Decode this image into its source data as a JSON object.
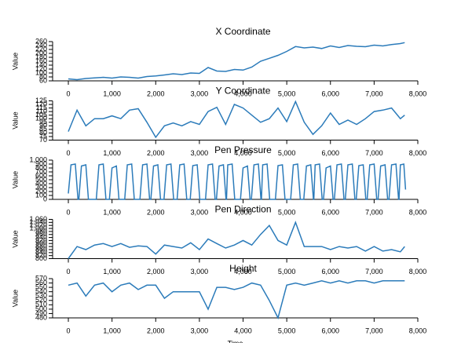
{
  "chart_data": [
    {
      "type": "line",
      "title": "X Coordinate",
      "ylabel": "Value",
      "color": "#2b7bba",
      "x": [
        0,
        200,
        400,
        600,
        800,
        1000,
        1200,
        1400,
        1600,
        1800,
        2000,
        2200,
        2400,
        2600,
        2800,
        3000,
        3200,
        3400,
        3600,
        3800,
        4000,
        4200,
        4400,
        4600,
        4800,
        5000,
        5200,
        5400,
        5600,
        5800,
        6000,
        6200,
        6400,
        6600,
        6800,
        7000,
        7200,
        7400,
        7600,
        7700
      ],
      "values": [
        70,
        66,
        72,
        75,
        78,
        74,
        80,
        78,
        74,
        82,
        85,
        90,
        96,
        92,
        100,
        98,
        128,
        110,
        108,
        118,
        115,
        130,
        160,
        175,
        190,
        210,
        235,
        228,
        232,
        225,
        238,
        230,
        240,
        236,
        234,
        242,
        238,
        245,
        250,
        255
      ],
      "xlim": [
        -360,
        8000
      ],
      "xticks": [
        0,
        {
          "value": 1000,
          "label": "1,000"
        },
        {
          "value": 2000,
          "label": "2,000"
        },
        {
          "value": 3000,
          "label": "3,000"
        },
        {
          "value": 4000,
          "label": "4,000"
        },
        {
          "value": 5000,
          "label": "5,000"
        },
        {
          "value": 6000,
          "label": "6,000"
        },
        {
          "value": 7000,
          "label": "7,000"
        },
        {
          "value": 8000,
          "label": "8,000"
        }
      ],
      "ylim": [
        60,
        260
      ],
      "yticks": [
        60,
        80,
        100,
        120,
        140,
        160,
        180,
        200,
        220,
        240,
        260
      ]
    },
    {
      "type": "line",
      "title": "Y Coordinate",
      "ylabel": "Value",
      "color": "#2b7bba",
      "x": [
        0,
        200,
        400,
        600,
        800,
        1000,
        1200,
        1400,
        1600,
        1800,
        2000,
        2200,
        2400,
        2600,
        2800,
        3000,
        3200,
        3400,
        3600,
        3800,
        4000,
        4200,
        4400,
        4600,
        4800,
        5000,
        5200,
        5400,
        5600,
        5800,
        6000,
        6200,
        6400,
        6600,
        6800,
        7000,
        7200,
        7400,
        7600,
        7700
      ],
      "values": [
        82,
        112,
        90,
        100,
        100,
        104,
        100,
        112,
        114,
        95,
        74,
        90,
        94,
        90,
        96,
        92,
        110,
        116,
        92,
        120,
        115,
        105,
        95,
        100,
        115,
        96,
        124,
        95,
        78,
        90,
        108,
        92,
        98,
        92,
        100,
        110,
        112,
        115,
        100,
        105
      ],
      "xlim": [
        -360,
        8000
      ],
      "xticks": [
        0,
        {
          "value": 1000,
          "label": "1,000"
        },
        {
          "value": 2000,
          "label": "2,000"
        },
        {
          "value": 3000,
          "label": "3,000"
        },
        {
          "value": 4000,
          "label": "4,000"
        },
        {
          "value": 5000,
          "label": "5,000"
        },
        {
          "value": 6000,
          "label": "6,000"
        },
        {
          "value": 7000,
          "label": "7,000"
        },
        {
          "value": 8000,
          "label": "8,000"
        }
      ],
      "ylim": [
        70,
        125
      ],
      "yticks": [
        70,
        75,
        80,
        85,
        90,
        95,
        100,
        105,
        110,
        115,
        120,
        125
      ]
    },
    {
      "type": "line",
      "title": "Pen Pressure",
      "ylabel": "Value",
      "color": "#2b7bba",
      "x": [
        0,
        60,
        160,
        220,
        240,
        300,
        400,
        460,
        640,
        700,
        800,
        860,
        940,
        1000,
        1100,
        1160,
        1290,
        1350,
        1450,
        1510,
        1640,
        1700,
        1800,
        1860,
        1890,
        1950,
        2050,
        2110,
        2190,
        2250,
        2350,
        2410,
        2490,
        2550,
        2650,
        2710,
        2790,
        2850,
        2950,
        3010,
        3140,
        3200,
        3300,
        3360,
        3390,
        3450,
        3550,
        3610,
        3620,
        3650,
        3750,
        3810,
        3940,
        4000,
        4100,
        4160,
        4190,
        4250,
        4350,
        4410,
        4420,
        4450,
        4550,
        4610,
        4740,
        4800,
        4900,
        4960,
        5090,
        5150,
        5250,
        5310,
        5390,
        5450,
        5550,
        5610,
        5620,
        5650,
        5750,
        5810,
        5840,
        5900,
        6000,
        6060,
        6090,
        6150,
        6250,
        6310,
        6340,
        6400,
        6500,
        6560,
        6590,
        6650,
        6750,
        6810,
        6840,
        6900,
        7000,
        7060,
        7090,
        7150,
        7250,
        7310,
        7340,
        7400,
        7500,
        7560,
        7570,
        7600,
        7680,
        7720
      ],
      "values": [
        150,
        880,
        900,
        0,
        0,
        850,
        880,
        0,
        0,
        880,
        900,
        0,
        0,
        800,
        850,
        0,
        0,
        880,
        900,
        0,
        0,
        880,
        900,
        0,
        0,
        850,
        880,
        0,
        0,
        880,
        900,
        0,
        0,
        880,
        900,
        0,
        0,
        860,
        880,
        0,
        0,
        880,
        900,
        0,
        0,
        850,
        880,
        0,
        0,
        880,
        900,
        0,
        0,
        800,
        850,
        0,
        0,
        880,
        900,
        0,
        0,
        880,
        900,
        0,
        0,
        860,
        880,
        0,
        0,
        880,
        900,
        0,
        0,
        850,
        880,
        0,
        0,
        880,
        900,
        0,
        0,
        800,
        850,
        0,
        0,
        880,
        900,
        0,
        0,
        880,
        900,
        0,
        0,
        860,
        880,
        0,
        0,
        880,
        900,
        0,
        0,
        850,
        880,
        0,
        0,
        880,
        900,
        0,
        0,
        880,
        900,
        250
      ],
      "xlim": [
        -360,
        8000
      ],
      "xticks": [
        0,
        {
          "value": 1000,
          "label": "1,000"
        },
        {
          "value": 2000,
          "label": "2,000"
        },
        {
          "value": 3000,
          "label": "3,000"
        },
        {
          "value": 4000,
          "label": "4,000"
        },
        {
          "value": 5000,
          "label": "5,000"
        },
        {
          "value": 6000,
          "label": "6,000"
        },
        {
          "value": 7000,
          "label": "7,000"
        },
        {
          "value": 8000,
          "label": "8,000"
        }
      ],
      "ylim": [
        0,
        1000
      ],
      "yticks": [
        0,
        100,
        200,
        300,
        400,
        500,
        600,
        700,
        800,
        900,
        {
          "value": 1000,
          "label": "1,000"
        }
      ]
    },
    {
      "type": "line",
      "title": "Pen Direction",
      "ylabel": "Value",
      "color": "#2b7bba",
      "x": [
        0,
        200,
        400,
        600,
        800,
        1000,
        1200,
        1400,
        1600,
        1800,
        2000,
        2200,
        2400,
        2600,
        2800,
        3000,
        3200,
        3400,
        3600,
        3800,
        4000,
        4200,
        4400,
        4600,
        4800,
        5000,
        5200,
        5400,
        5600,
        5800,
        6000,
        6200,
        6400,
        6600,
        6800,
        7000,
        7200,
        7400,
        7600,
        7700
      ],
      "values": [
        800,
        880,
        860,
        890,
        900,
        880,
        900,
        875,
        885,
        880,
        830,
        890,
        880,
        870,
        905,
        860,
        930,
        900,
        870,
        890,
        920,
        890,
        960,
        1020,
        920,
        890,
        1040,
        880,
        880,
        880,
        860,
        880,
        870,
        880,
        850,
        880,
        850,
        860,
        845,
        880
      ],
      "xlim": [
        -360,
        8000
      ],
      "xticks": [
        0,
        {
          "value": 1000,
          "label": "1,000"
        },
        {
          "value": 2000,
          "label": "2,000"
        },
        {
          "value": 3000,
          "label": "3,000"
        },
        {
          "value": 4000,
          "label": "4,000"
        },
        {
          "value": 5000,
          "label": "5,000"
        },
        {
          "value": 6000,
          "label": "6,000"
        },
        {
          "value": 7000,
          "label": "7,000"
        },
        {
          "value": 8000,
          "label": "8,000"
        }
      ],
      "ylim": [
        800,
        1060
      ],
      "yticks": [
        800,
        820,
        840,
        860,
        880,
        900,
        920,
        940,
        960,
        980,
        {
          "value": 1000,
          "label": "1,000"
        },
        {
          "value": 1020,
          "label": "1,020"
        },
        {
          "value": 1040,
          "label": "1,040"
        },
        {
          "value": 1060,
          "label": "1,060"
        }
      ]
    },
    {
      "type": "line",
      "title": "Height",
      "ylabel": "Value",
      "xlabel": "Time",
      "color": "#2b7bba",
      "x": [
        0,
        200,
        400,
        600,
        800,
        1000,
        1200,
        1400,
        1600,
        1800,
        2000,
        2200,
        2400,
        2600,
        2800,
        3000,
        3200,
        3400,
        3600,
        3800,
        4000,
        4200,
        4400,
        4600,
        4800,
        5000,
        5200,
        5400,
        5600,
        5800,
        6000,
        6200,
        6400,
        6600,
        6800,
        7000,
        7200,
        7400,
        7600,
        7700
      ],
      "values": [
        555,
        560,
        530,
        555,
        560,
        540,
        555,
        560,
        545,
        555,
        555,
        525,
        540,
        540,
        540,
        540,
        500,
        550,
        550,
        545,
        550,
        560,
        555,
        520,
        480,
        555,
        560,
        555,
        560,
        565,
        560,
        565,
        560,
        565,
        565,
        560,
        565,
        565,
        565,
        565
      ],
      "xlim": [
        -360,
        8000
      ],
      "xticks": [
        0,
        {
          "value": 1000,
          "label": "1,000"
        },
        {
          "value": 2000,
          "label": "2,000"
        },
        {
          "value": 3000,
          "label": "3,000"
        },
        {
          "value": 4000,
          "label": "4,000"
        },
        {
          "value": 5000,
          "label": "5,000"
        },
        {
          "value": 6000,
          "label": "6,000"
        },
        {
          "value": 7000,
          "label": "7,000"
        },
        {
          "value": 8000,
          "label": "8,000"
        }
      ],
      "ylim": [
        480,
        570
      ],
      "yticks": [
        480,
        490,
        500,
        510,
        520,
        530,
        540,
        550,
        560,
        570
      ]
    }
  ]
}
